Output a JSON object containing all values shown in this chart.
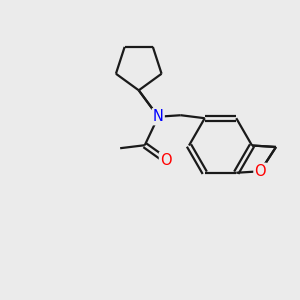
{
  "background_color": "#ebebeb",
  "bond_color": "#1a1a1a",
  "N_color": "#0000ff",
  "O_color": "#ff0000",
  "line_width": 1.6,
  "font_size_atom": 10.5,
  "fig_width": 3.0,
  "fig_height": 3.0,
  "xlim": [
    0,
    10
  ],
  "ylim": [
    0,
    10
  ]
}
